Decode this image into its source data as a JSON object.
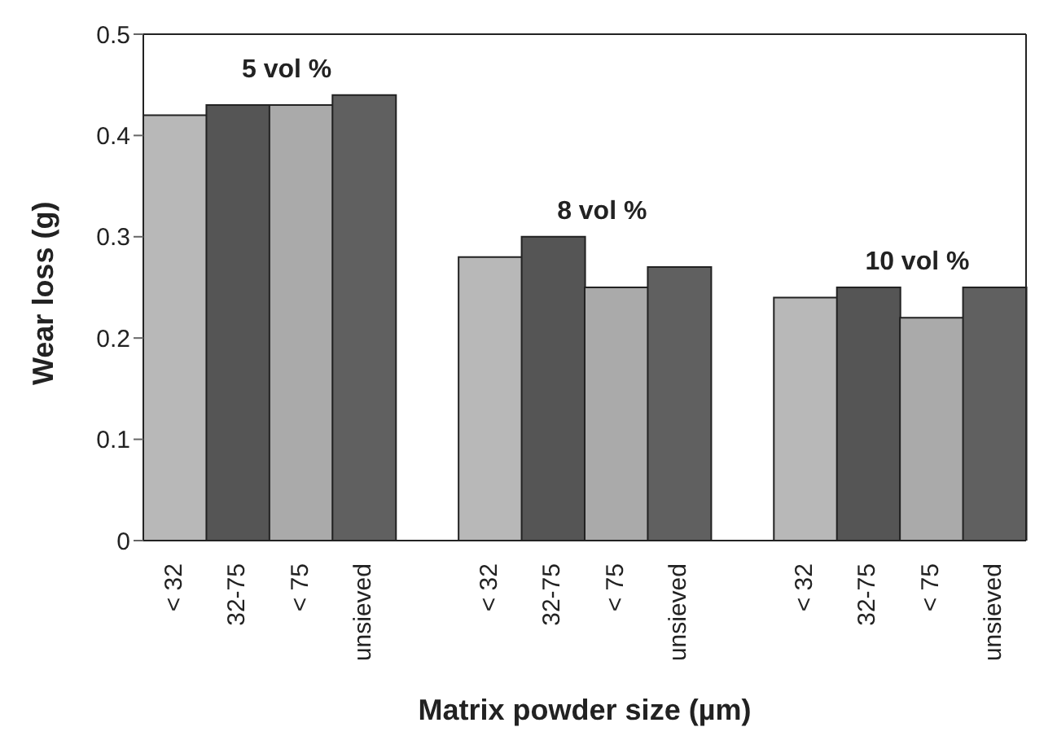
{
  "chart_data": {
    "type": "bar",
    "xlabel": "Matrix powder size (µm)",
    "ylabel": "Wear loss (g)",
    "categories": [
      "< 32",
      "32-75",
      "< 75",
      "unsieved",
      null,
      "< 32",
      "32-75",
      "< 75",
      "unsieved",
      null,
      "< 32",
      "32-75",
      "< 75",
      "unsieved"
    ],
    "values": [
      0.42,
      0.43,
      0.43,
      0.44,
      null,
      0.28,
      0.3,
      0.25,
      0.27,
      null,
      0.24,
      0.25,
      0.22,
      0.25
    ],
    "colors": [
      "#b8b8b8",
      "#555555",
      "#aaaaaa",
      "#606060",
      "#ffffff",
      "#b8b8b8",
      "#555555",
      "#aaaaaa",
      "#606060",
      "#ffffff",
      "#b8b8b8",
      "#555555",
      "#aaaaaa",
      "#606060"
    ],
    "annotations": [
      "5 vol %",
      "8 vol %",
      "10 vol %"
    ],
    "ylim": [
      0,
      0.5
    ],
    "yticks": [
      0,
      0.1,
      0.2,
      0.3,
      0.4,
      0.5
    ],
    "grid": false
  }
}
